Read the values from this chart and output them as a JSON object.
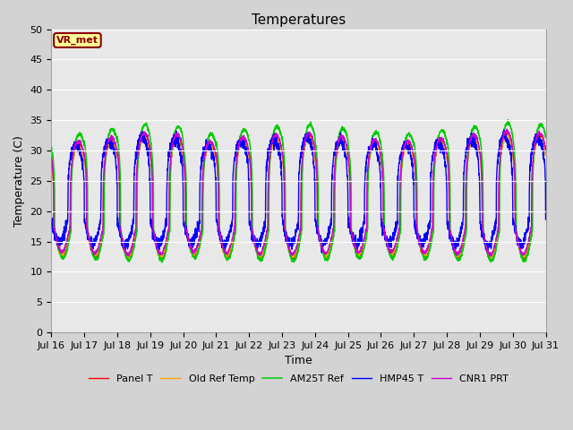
{
  "title": "Temperatures",
  "xlabel": "Time",
  "ylabel": "Temperature (C)",
  "ylim": [
    0,
    50
  ],
  "xlim": [
    0,
    15
  ],
  "x_tick_labels": [
    "Jul 16",
    "Jul 17",
    "Jul 18",
    "Jul 19",
    "Jul 20",
    "Jul 21",
    "Jul 22",
    "Jul 23",
    "Jul 24",
    "Jul 25",
    "Jul 26",
    "Jul 27",
    "Jul 28",
    "Jul 29",
    "Jul 30",
    "Jul 31"
  ],
  "annotation_text": "VR_met",
  "legend": [
    "Panel T",
    "Old Ref Temp",
    "AM25T Ref",
    "HMP45 T",
    "CNR1 PRT"
  ],
  "line_colors": [
    "#ff0000",
    "#ffa500",
    "#00cc00",
    "#0000ff",
    "#cc00cc"
  ],
  "fig_facecolor": "#d3d3d3",
  "ax_facecolor": "#e8e8e8",
  "title_fontsize": 11,
  "axis_label_fontsize": 9,
  "tick_fontsize": 8,
  "n_points": 3000,
  "base_temp": 17,
  "amp": 14,
  "sharpness": 4.0,
  "blue_phase_lag": 0.08,
  "green_amp_scale": 1.12,
  "day_amplitude_variation": [
    1.0,
    1.05,
    1.1,
    1.08,
    1.0,
    1.05,
    1.08,
    1.1,
    1.06,
    1.02,
    1.0,
    1.04,
    1.08,
    1.12,
    1.1
  ]
}
